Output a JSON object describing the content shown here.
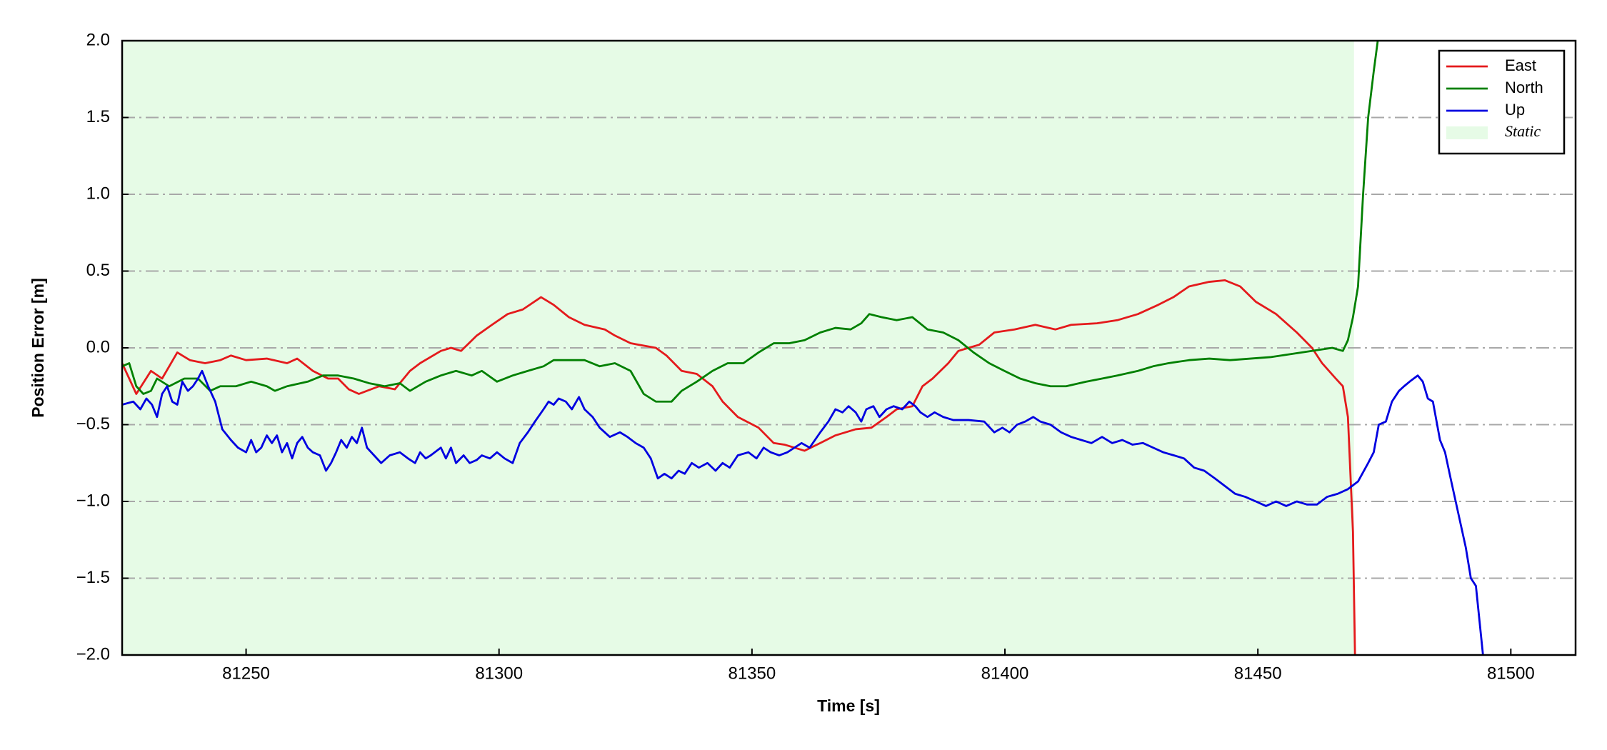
{
  "chart_data": {
    "type": "line",
    "xlabel": "Time [s]",
    "ylabel": "Position Error [m]",
    "xlim": [
      81225.5,
      81512.8
    ],
    "ylim": [
      -2.0,
      2.0
    ],
    "xticks": [
      81250,
      81300,
      81350,
      81400,
      81450,
      81500
    ],
    "yticks": [
      {
        "value": -2.0,
        "label": "−2.0"
      },
      {
        "value": -1.5,
        "label": "−1.5"
      },
      {
        "value": -1.0,
        "label": "−1.0"
      },
      {
        "value": -0.5,
        "label": "−0.5"
      },
      {
        "value": 0.0,
        "label": "0.0"
      },
      {
        "value": 0.5,
        "label": "0.5"
      },
      {
        "value": 1.0,
        "label": "1.0"
      },
      {
        "value": 1.5,
        "label": "1.5"
      },
      {
        "value": 2.0,
        "label": "2.0"
      }
    ],
    "grid": "y",
    "legend_position": "upper-right",
    "shaded_regions": [
      {
        "name": "Static",
        "start": 81225.5,
        "end": 81469,
        "color": "#e6fbe6"
      }
    ],
    "series": [
      {
        "name": "East",
        "color": "#e41a1c",
        "x": [
          81225.5,
          81228.3,
          81231.2,
          81233.4,
          81236.4,
          81238.9,
          81241.9,
          81244.9,
          81247.0,
          81250.0,
          81254.1,
          81258.1,
          81260.1,
          81263.2,
          81266.2,
          81268.2,
          81270.3,
          81272.3,
          81276.3,
          81279.4,
          81282.4,
          81284.4,
          81288.5,
          81290.5,
          81292.5,
          81295.6,
          81298.6,
          81301.7,
          81304.7,
          81308.3,
          81310.8,
          81313.8,
          81316.9,
          81320.9,
          81322.9,
          81326.0,
          81331.0,
          81333.1,
          81336.1,
          81339.1,
          81342.2,
          81344.2,
          81347.2,
          81351.3,
          81354.3,
          81356.4,
          81360.4,
          81363.5,
          81366.5,
          81370.5,
          81373.6,
          81376.6,
          81378.6,
          81381.7,
          81383.7,
          81385.7,
          81388.8,
          81390.8,
          81392.8,
          81394.9,
          81397.9,
          81401.9,
          81406.0,
          81410.0,
          81413.1,
          81418.2,
          81422.2,
          81426.3,
          81430.3,
          81433.3,
          81436.4,
          81440.4,
          81443.5,
          81446.5,
          81449.6,
          81453.6,
          81457.7,
          81460.7,
          81462.7,
          81465.4,
          81466.8,
          81467.8,
          81468.8,
          81469.2
        ],
        "values": [
          -0.1,
          -0.3,
          -0.15,
          -0.2,
          -0.03,
          -0.08,
          -0.1,
          -0.08,
          -0.05,
          -0.08,
          -0.07,
          -0.1,
          -0.07,
          -0.15,
          -0.2,
          -0.2,
          -0.27,
          -0.3,
          -0.25,
          -0.27,
          -0.15,
          -0.1,
          -0.02,
          0,
          -0.02,
          0.08,
          0.15,
          0.22,
          0.25,
          0.33,
          0.28,
          0.2,
          0.15,
          0.12,
          0.08,
          0.03,
          0,
          -0.05,
          -0.15,
          -0.17,
          -0.25,
          -0.35,
          -0.45,
          -0.52,
          -0.62,
          -0.63,
          -0.67,
          -0.62,
          -0.57,
          -0.53,
          -0.52,
          -0.45,
          -0.4,
          -0.38,
          -0.25,
          -0.2,
          -0.1,
          -0.02,
          0,
          0.02,
          0.1,
          0.12,
          0.15,
          0.12,
          0.15,
          0.16,
          0.18,
          0.22,
          0.28,
          0.33,
          0.4,
          0.43,
          0.44,
          0.4,
          0.3,
          0.22,
          0.1,
          0,
          -0.1,
          -0.2,
          -0.25,
          -0.45,
          -1.2,
          -2.0
        ]
      },
      {
        "name": "North",
        "color": "#008000",
        "x": [
          81225.5,
          81226.9,
          81228.3,
          81229.7,
          81231.2,
          81232.4,
          81234.8,
          81237.8,
          81240.5,
          81242.9,
          81244.9,
          81248.0,
          81251.0,
          81254.1,
          81255.7,
          81258.1,
          81262.2,
          81265.2,
          81268.2,
          81271.3,
          81274.3,
          81277.4,
          81280.4,
          81282.4,
          81285.5,
          81288.5,
          81291.5,
          81294.6,
          81296.6,
          81299.6,
          81302.7,
          81305.7,
          81308.8,
          81310.8,
          81313.8,
          81316.9,
          81319.9,
          81322.9,
          81326.0,
          81328.6,
          81331.0,
          81334.1,
          81336.1,
          81339.1,
          81342.2,
          81345.2,
          81348.3,
          81351.3,
          81354.3,
          81357.4,
          81360.4,
          81363.5,
          81366.5,
          81369.5,
          81371.6,
          81373.2,
          81375.6,
          81378.6,
          81381.7,
          81384.7,
          81387.8,
          81390.8,
          81393.8,
          81396.9,
          81399.9,
          81403.0,
          81406.0,
          81409.0,
          81412.1,
          81416.1,
          81419.2,
          81422.2,
          81426.3,
          81429.3,
          81432.3,
          81436.4,
          81440.4,
          81444.5,
          81448.5,
          81452.6,
          81456.6,
          81460.7,
          81464.7,
          81466.8,
          81467.8,
          81468.8,
          81469.8,
          81470.8,
          81471.8,
          81472.9,
          81473.7
        ],
        "values": [
          -0.12,
          -0.1,
          -0.25,
          -0.3,
          -0.28,
          -0.2,
          -0.25,
          -0.2,
          -0.2,
          -0.28,
          -0.25,
          -0.25,
          -0.22,
          -0.25,
          -0.28,
          -0.25,
          -0.22,
          -0.18,
          -0.18,
          -0.2,
          -0.23,
          -0.25,
          -0.23,
          -0.28,
          -0.22,
          -0.18,
          -0.15,
          -0.18,
          -0.15,
          -0.22,
          -0.18,
          -0.15,
          -0.12,
          -0.08,
          -0.08,
          -0.08,
          -0.12,
          -0.1,
          -0.15,
          -0.3,
          -0.35,
          -0.35,
          -0.28,
          -0.22,
          -0.15,
          -0.1,
          -0.1,
          -0.03,
          0.03,
          0.03,
          0.05,
          0.1,
          0.13,
          0.12,
          0.16,
          0.22,
          0.2,
          0.18,
          0.2,
          0.12,
          0.1,
          0.05,
          -0.03,
          -0.1,
          -0.15,
          -0.2,
          -0.23,
          -0.25,
          -0.25,
          -0.22,
          -0.2,
          -0.18,
          -0.15,
          -0.12,
          -0.1,
          -0.08,
          -0.07,
          -0.08,
          -0.07,
          -0.06,
          -0.04,
          -0.02,
          0,
          -0.02,
          0.05,
          0.2,
          0.4,
          1.0,
          1.5,
          1.8,
          2.0
        ]
      },
      {
        "name": "Up",
        "color": "#0000e0",
        "x": [
          81225.5,
          81227.7,
          81229.1,
          81230.3,
          81231.4,
          81232.4,
          81233.4,
          81234.4,
          81235.4,
          81236.4,
          81237.4,
          81238.5,
          81239.5,
          81240.5,
          81241.3,
          81242.5,
          81243.9,
          81245.3,
          81247.0,
          81248.4,
          81250.0,
          81251.0,
          81252.0,
          81253.0,
          81254.1,
          81255.1,
          81256.1,
          81257.1,
          81258.1,
          81259.1,
          81260.1,
          81261.1,
          81262.2,
          81263.2,
          81264.6,
          81265.8,
          81266.8,
          81267.8,
          81268.8,
          81269.9,
          81270.9,
          81271.9,
          81272.9,
          81273.9,
          81275.3,
          81276.7,
          81278.4,
          81280.4,
          81282.0,
          81283.4,
          81284.4,
          81285.5,
          81286.5,
          81288.5,
          81289.5,
          81290.5,
          81291.5,
          81293.0,
          81294.2,
          81295.6,
          81296.6,
          81298.2,
          81299.6,
          81301.1,
          81302.7,
          81304.1,
          81305.7,
          81307.1,
          81308.8,
          81309.8,
          81310.8,
          81311.8,
          81313.2,
          81314.4,
          81315.8,
          81316.9,
          81318.5,
          81319.9,
          81321.9,
          81323.9,
          81325.4,
          81327.0,
          81328.6,
          81330.0,
          81331.4,
          81332.7,
          81334.1,
          81335.5,
          81336.7,
          81338.1,
          81339.5,
          81341.2,
          81342.8,
          81344.2,
          81345.6,
          81347.2,
          81349.3,
          81350.9,
          81352.3,
          81353.7,
          81355.4,
          81357.0,
          81358.4,
          81359.8,
          81361.4,
          81363.5,
          81365.1,
          81366.5,
          81367.9,
          81369.1,
          81370.5,
          81371.6,
          81372.6,
          81374.0,
          81375.2,
          81376.6,
          81378.0,
          81379.7,
          81381.1,
          81382.3,
          81383.3,
          81384.7,
          81386.1,
          81387.8,
          81389.8,
          81392.8,
          81395.9,
          81397.9,
          81399.5,
          81400.9,
          81402.4,
          81404.0,
          81405.6,
          81407.0,
          81409.0,
          81411.1,
          81413.1,
          81415.1,
          81417.1,
          81419.2,
          81421.2,
          81423.2,
          81425.2,
          81427.3,
          81429.3,
          81431.3,
          81433.4,
          81435.4,
          81437.4,
          81439.4,
          81441.5,
          81443.5,
          81445.5,
          81447.5,
          81449.6,
          81451.6,
          81453.6,
          81455.6,
          81457.7,
          81459.7,
          81461.7,
          81463.7,
          81465.8,
          81467.8,
          81469.8,
          81471.8,
          81472.9,
          81473.9,
          81475.3,
          81476.5,
          81477.9,
          81478.9,
          81480.0,
          81481.6,
          81482.6,
          81483.6,
          81484.6,
          81486.0,
          81487.0,
          81488.1,
          81489.1,
          81490.1,
          81491.1,
          81492.1,
          81493.1,
          81494.5
        ],
        "values": [
          -0.37,
          -0.35,
          -0.4,
          -0.33,
          -0.37,
          -0.45,
          -0.3,
          -0.25,
          -0.35,
          -0.37,
          -0.22,
          -0.28,
          -0.25,
          -0.2,
          -0.15,
          -0.25,
          -0.35,
          -0.53,
          -0.6,
          -0.65,
          -0.68,
          -0.6,
          -0.68,
          -0.65,
          -0.57,
          -0.62,
          -0.57,
          -0.68,
          -0.62,
          -0.72,
          -0.62,
          -0.58,
          -0.65,
          -0.68,
          -0.7,
          -0.8,
          -0.75,
          -0.68,
          -0.6,
          -0.65,
          -0.58,
          -0.62,
          -0.52,
          -0.65,
          -0.7,
          -0.75,
          -0.7,
          -0.68,
          -0.72,
          -0.75,
          -0.68,
          -0.72,
          -0.7,
          -0.65,
          -0.72,
          -0.65,
          -0.75,
          -0.7,
          -0.75,
          -0.73,
          -0.7,
          -0.72,
          -0.68,
          -0.72,
          -0.75,
          -0.62,
          -0.55,
          -0.48,
          -0.4,
          -0.35,
          -0.37,
          -0.33,
          -0.35,
          -0.4,
          -0.32,
          -0.4,
          -0.45,
          -0.52,
          -0.58,
          -0.55,
          -0.58,
          -0.62,
          -0.65,
          -0.72,
          -0.85,
          -0.82,
          -0.85,
          -0.8,
          -0.82,
          -0.75,
          -0.78,
          -0.75,
          -0.8,
          -0.75,
          -0.78,
          -0.7,
          -0.68,
          -0.72,
          -0.65,
          -0.68,
          -0.7,
          -0.68,
          -0.65,
          -0.62,
          -0.65,
          -0.55,
          -0.48,
          -0.4,
          -0.42,
          -0.38,
          -0.42,
          -0.48,
          -0.4,
          -0.38,
          -0.45,
          -0.4,
          -0.38,
          -0.4,
          -0.35,
          -0.38,
          -0.42,
          -0.45,
          -0.42,
          -0.45,
          -0.47,
          -0.47,
          -0.48,
          -0.55,
          -0.52,
          -0.55,
          -0.5,
          -0.48,
          -0.45,
          -0.48,
          -0.5,
          -0.55,
          -0.58,
          -0.6,
          -0.62,
          -0.58,
          -0.62,
          -0.6,
          -0.63,
          -0.62,
          -0.65,
          -0.68,
          -0.7,
          -0.72,
          -0.78,
          -0.8,
          -0.85,
          -0.9,
          -0.95,
          -0.97,
          -1.0,
          -1.03,
          -1.0,
          -1.03,
          -1.0,
          -1.02,
          -1.02,
          -0.97,
          -0.95,
          -0.92,
          -0.87,
          -0.75,
          -0.68,
          -0.5,
          -0.48,
          -0.35,
          -0.28,
          -0.25,
          -0.22,
          -0.18,
          -0.22,
          -0.33,
          -0.35,
          -0.6,
          -0.68,
          -0.85,
          -1.0,
          -1.15,
          -1.3,
          -1.5,
          -1.55,
          -2.0
        ]
      }
    ]
  }
}
